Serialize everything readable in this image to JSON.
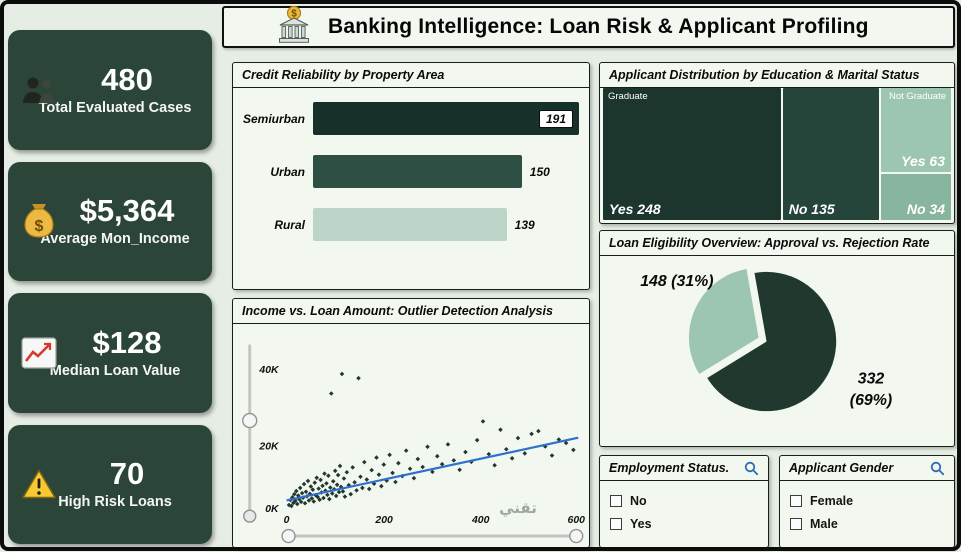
{
  "header": {
    "title": "Banking Intelligence: Loan Risk & Applicant Profiling"
  },
  "kpis": [
    {
      "icon": "people",
      "value": "480",
      "label": "Total Evaluated Cases"
    },
    {
      "icon": "money-bag",
      "value": "$5,364",
      "label": "Average Mon_Income"
    },
    {
      "icon": "chart",
      "value": "$128",
      "label": "Median Loan Value"
    },
    {
      "icon": "warning",
      "value": "70",
      "label": "High Risk Loans"
    }
  ],
  "chart_data": [
    {
      "id": "credit-reliability-by-property-area",
      "type": "bar",
      "orientation": "horizontal",
      "title": "Credit Reliability by Property Area",
      "categories": [
        "Semiurban",
        "Urban",
        "Rural"
      ],
      "values": [
        191,
        150,
        139
      ],
      "bar_colors": [
        "#16302a",
        "#2e5044",
        "#bdd5c8"
      ],
      "xlim": [
        0,
        200
      ]
    },
    {
      "id": "income-vs-loan-outlier-scatter",
      "type": "scatter",
      "title": "Income vs. Loan Amount: Outlier Detection Analysis",
      "x_range": [
        0,
        600
      ],
      "y_range": [
        0,
        45000
      ],
      "x_ticks": [
        "0",
        "200",
        "400",
        "600"
      ],
      "y_ticks": [
        "0K",
        "20K",
        "40K"
      ],
      "point_color": "#22382e",
      "trend_line": {
        "from": [
          0,
          2500
        ],
        "to": [
          600,
          20500
        ],
        "color": "#2e6fd0"
      },
      "points": [
        [
          5,
          1200
        ],
        [
          8,
          2600
        ],
        [
          10,
          900
        ],
        [
          12,
          3400
        ],
        [
          14,
          1800
        ],
        [
          16,
          4300
        ],
        [
          18,
          2400
        ],
        [
          20,
          5200
        ],
        [
          22,
          1500
        ],
        [
          24,
          3900
        ],
        [
          26,
          2900
        ],
        [
          28,
          6100
        ],
        [
          30,
          2100
        ],
        [
          32,
          4600
        ],
        [
          34,
          3300
        ],
        [
          36,
          7200
        ],
        [
          38,
          1700
        ],
        [
          40,
          5000
        ],
        [
          42,
          3700
        ],
        [
          44,
          8100
        ],
        [
          46,
          2500
        ],
        [
          48,
          4400
        ],
        [
          50,
          6500
        ],
        [
          52,
          3100
        ],
        [
          54,
          5600
        ],
        [
          56,
          2200
        ],
        [
          58,
          7600
        ],
        [
          60,
          4000
        ],
        [
          62,
          9000
        ],
        [
          64,
          3500
        ],
        [
          66,
          5900
        ],
        [
          68,
          2700
        ],
        [
          70,
          8400
        ],
        [
          72,
          4800
        ],
        [
          74,
          6700
        ],
        [
          76,
          3200
        ],
        [
          78,
          10200
        ],
        [
          80,
          5300
        ],
        [
          82,
          7400
        ],
        [
          84,
          4100
        ],
        [
          86,
          9600
        ],
        [
          88,
          2900
        ],
        [
          90,
          6200
        ],
        [
          92,
          33200
        ],
        [
          94,
          4500
        ],
        [
          96,
          8000
        ],
        [
          98,
          5700
        ],
        [
          100,
          11000
        ],
        [
          102,
          3800
        ],
        [
          104,
          7000
        ],
        [
          106,
          9800
        ],
        [
          108,
          4900
        ],
        [
          110,
          12400
        ],
        [
          112,
          6400
        ],
        [
          114,
          38800
        ],
        [
          116,
          5100
        ],
        [
          118,
          8800
        ],
        [
          120,
          3600
        ],
        [
          124,
          10600
        ],
        [
          128,
          6900
        ],
        [
          132,
          4300
        ],
        [
          136,
          12000
        ],
        [
          140,
          7700
        ],
        [
          144,
          5400
        ],
        [
          148,
          37600
        ],
        [
          152,
          9300
        ],
        [
          156,
          6100
        ],
        [
          160,
          13500
        ],
        [
          165,
          8500
        ],
        [
          170,
          5800
        ],
        [
          175,
          11200
        ],
        [
          180,
          7300
        ],
        [
          185,
          14800
        ],
        [
          190,
          9900
        ],
        [
          195,
          6600
        ],
        [
          200,
          12800
        ],
        [
          206,
          8200
        ],
        [
          212,
          15600
        ],
        [
          218,
          10400
        ],
        [
          224,
          7800
        ],
        [
          230,
          13200
        ],
        [
          238,
          9500
        ],
        [
          246,
          16800
        ],
        [
          254,
          11600
        ],
        [
          262,
          8900
        ],
        [
          270,
          14400
        ],
        [
          280,
          12100
        ],
        [
          290,
          17900
        ],
        [
          300,
          10700
        ],
        [
          310,
          15200
        ],
        [
          320,
          12900
        ],
        [
          332,
          18600
        ],
        [
          344,
          14000
        ],
        [
          356,
          11300
        ],
        [
          368,
          16400
        ],
        [
          380,
          13600
        ],
        [
          392,
          19800
        ],
        [
          404,
          25200
        ],
        [
          416,
          15800
        ],
        [
          428,
          12600
        ],
        [
          440,
          22800
        ],
        [
          452,
          17200
        ],
        [
          464,
          14600
        ],
        [
          476,
          20400
        ],
        [
          490,
          16000
        ],
        [
          504,
          21600
        ],
        [
          518,
          22400
        ],
        [
          532,
          18000
        ],
        [
          546,
          15400
        ],
        [
          560,
          20000
        ],
        [
          575,
          19000
        ],
        [
          590,
          17000
        ]
      ]
    },
    {
      "id": "education-marital-treemap",
      "type": "treemap",
      "title": "Applicant Distribution by Education & Marital Status",
      "groups": [
        {
          "label": "Graduate",
          "items": [
            {
              "label": "Yes",
              "value": 248,
              "color": "#1c362d"
            },
            {
              "label": "No",
              "value": 135,
              "color": "#25443a"
            }
          ]
        },
        {
          "label": "Not Graduate",
          "items": [
            {
              "label": "Yes",
              "value": 63,
              "color": "#9dc6b2"
            },
            {
              "label": "No",
              "value": 34,
              "color": "#87b5a0"
            }
          ]
        }
      ]
    },
    {
      "id": "loan-eligibility-pie",
      "type": "pie",
      "title": "Loan Eligibility Overview: Approval vs. Rejection Rate",
      "slices": [
        {
          "value": 148,
          "pct": 31,
          "color": "#9dc6b2",
          "label": "148 (31%)"
        },
        {
          "value": 332,
          "pct": 69,
          "color": "#20382e",
          "label_line1": "332",
          "label_line2": "(69%)"
        }
      ]
    }
  ],
  "filters": [
    {
      "title": "Employment Status.",
      "options": [
        "No",
        "Yes"
      ]
    },
    {
      "title": "Applicant Gender",
      "options": [
        "Female",
        "Male"
      ]
    }
  ],
  "watermark": {
    "text": "تقني"
  }
}
